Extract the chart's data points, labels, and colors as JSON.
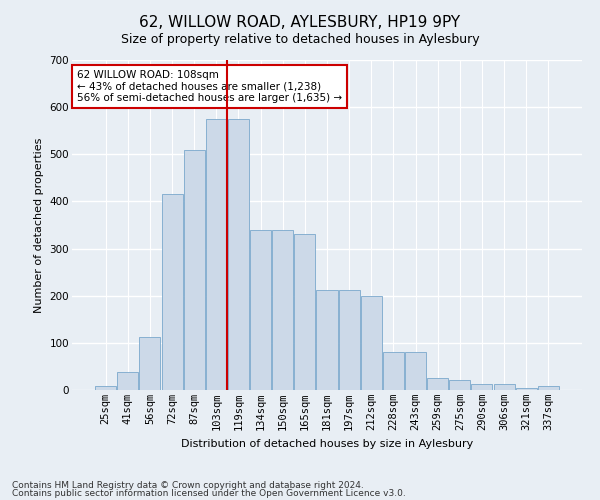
{
  "title": "62, WILLOW ROAD, AYLESBURY, HP19 9PY",
  "subtitle": "Size of property relative to detached houses in Aylesbury",
  "xlabel": "Distribution of detached houses by size in Aylesbury",
  "ylabel": "Number of detached properties",
  "bar_color": "#ccd9e8",
  "bar_edge_color": "#7aa8cc",
  "categories": [
    "25sqm",
    "41sqm",
    "56sqm",
    "72sqm",
    "87sqm",
    "103sqm",
    "119sqm",
    "134sqm",
    "150sqm",
    "165sqm",
    "181sqm",
    "197sqm",
    "212sqm",
    "228sqm",
    "243sqm",
    "259sqm",
    "275sqm",
    "290sqm",
    "306sqm",
    "321sqm",
    "337sqm"
  ],
  "values": [
    8,
    38,
    112,
    415,
    510,
    575,
    575,
    340,
    340,
    330,
    212,
    212,
    200,
    80,
    80,
    25,
    22,
    12,
    13,
    5,
    8
  ],
  "ylim": [
    0,
    700
  ],
  "yticks": [
    0,
    100,
    200,
    300,
    400,
    500,
    600,
    700
  ],
  "property_line_idx": 6,
  "annotation_title": "62 WILLOW ROAD: 108sqm",
  "annotation_line1": "← 43% of detached houses are smaller (1,238)",
  "annotation_line2": "56% of semi-detached houses are larger (1,635) →",
  "footer1": "Contains HM Land Registry data © Crown copyright and database right 2024.",
  "footer2": "Contains public sector information licensed under the Open Government Licence v3.0.",
  "outer_bg_color": "#e8eef4",
  "plot_bg_color": "#e8eef4",
  "grid_color": "#ffffff",
  "annotation_box_color": "#ffffff",
  "annotation_box_edge": "#cc0000",
  "line_color": "#cc0000",
  "title_fontsize": 11,
  "subtitle_fontsize": 9,
  "ylabel_fontsize": 8,
  "xlabel_fontsize": 8,
  "tick_fontsize": 7.5,
  "footer_fontsize": 6.5
}
